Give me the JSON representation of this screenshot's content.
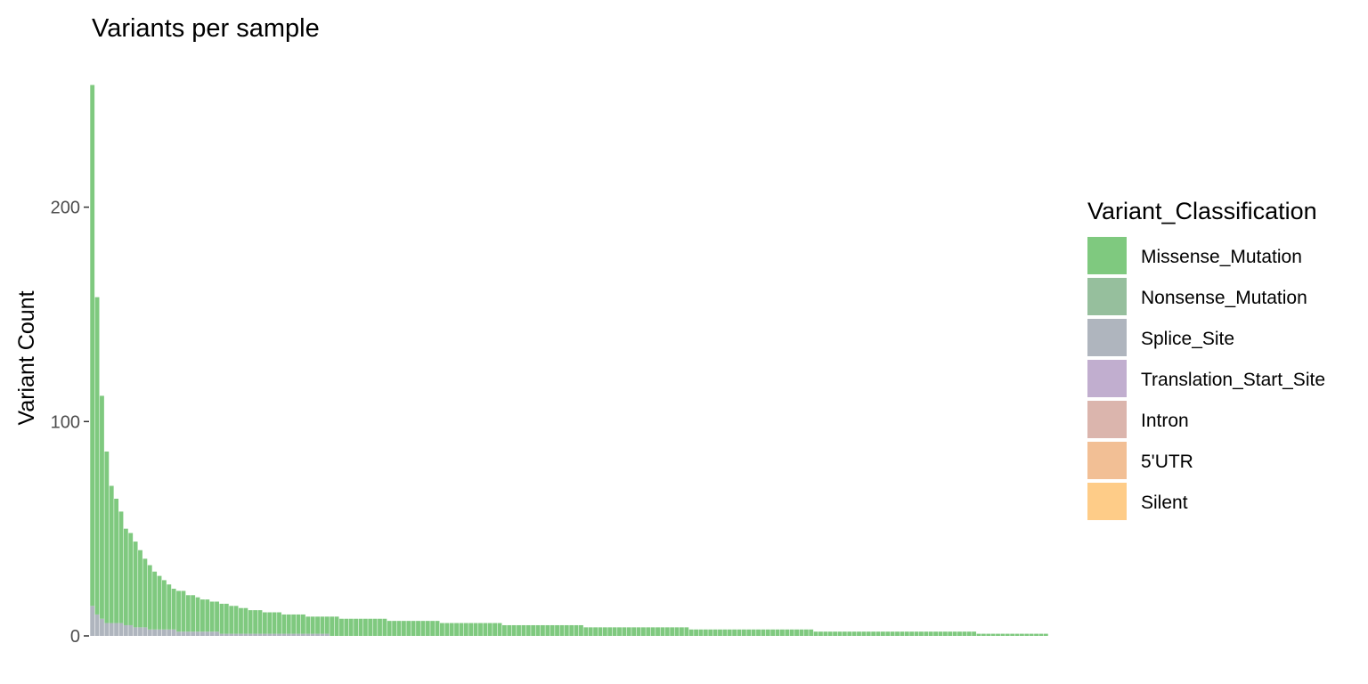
{
  "chart_data": {
    "type": "bar",
    "stacked": true,
    "title": "Variants per sample",
    "xlabel": "",
    "ylabel": "Variant Count",
    "ylim": [
      0,
      258
    ],
    "yticks": [
      0,
      100,
      200
    ],
    "grid": false,
    "legend": {
      "title": "Variant_Classification",
      "position": "right"
    },
    "n_samples": 200,
    "series": [
      {
        "name": "Missense_Mutation",
        "color": "#7fc97f"
      },
      {
        "name": "Nonsense_Mutation",
        "color": "#96bf9d"
      },
      {
        "name": "Splice_Site",
        "color": "#afb5be"
      },
      {
        "name": "Translation_Start_Site",
        "color": "#c1aecf"
      },
      {
        "name": "Intron",
        "color": "#dbb5ad"
      },
      {
        "name": "5'UTR",
        "color": "#f2bf95"
      },
      {
        "name": "Silent",
        "color": "#fecc88"
      }
    ],
    "sample_totals": [
      257,
      158,
      112,
      86,
      70,
      64,
      58,
      50,
      48,
      44,
      40,
      36,
      33,
      30,
      28,
      26,
      24,
      22,
      21,
      21,
      19,
      19,
      18,
      17,
      17,
      16,
      16,
      15,
      15,
      14,
      14,
      13,
      13,
      12,
      12,
      12,
      11,
      11,
      11,
      11,
      10,
      10,
      10,
      10,
      10,
      9,
      9,
      9,
      9,
      9,
      9,
      9,
      8,
      8,
      8,
      8,
      8,
      8,
      8,
      8,
      8,
      8,
      7,
      7,
      7,
      7,
      7,
      7,
      7,
      7,
      7,
      7,
      7,
      6,
      6,
      6,
      6,
      6,
      6,
      6,
      6,
      6,
      6,
      6,
      6,
      6,
      5,
      5,
      5,
      5,
      5,
      5,
      5,
      5,
      5,
      5,
      5,
      5,
      5,
      5,
      5,
      5,
      5,
      4,
      4,
      4,
      4,
      4,
      4,
      4,
      4,
      4,
      4,
      4,
      4,
      4,
      4,
      4,
      4,
      4,
      4,
      4,
      4,
      4,
      4,
      3,
      3,
      3,
      3,
      3,
      3,
      3,
      3,
      3,
      3,
      3,
      3,
      3,
      3,
      3,
      3,
      3,
      3,
      3,
      3,
      3,
      3,
      3,
      3,
      3,
      3,
      2,
      2,
      2,
      2,
      2,
      2,
      2,
      2,
      2,
      2,
      2,
      2,
      2,
      2,
      2,
      2,
      2,
      2,
      2,
      2,
      2,
      2,
      2,
      2,
      2,
      2,
      2,
      2,
      2,
      2,
      2,
      2,
      2,
      2,
      1,
      1,
      1,
      1,
      1,
      1,
      1,
      1,
      1,
      1,
      1,
      1,
      1,
      1,
      1
    ],
    "non_missense_counts": [
      14,
      10,
      8,
      6,
      6,
      6,
      6,
      5,
      5,
      4,
      4,
      4,
      3,
      3,
      3,
      3,
      3,
      3,
      2,
      2,
      2,
      2,
      2,
      2,
      2,
      2,
      2,
      1,
      1,
      1,
      1,
      1,
      1,
      1,
      1,
      1,
      1,
      1,
      1,
      1,
      1,
      1,
      1,
      1,
      1,
      1,
      1,
      1,
      1,
      1
    ]
  }
}
